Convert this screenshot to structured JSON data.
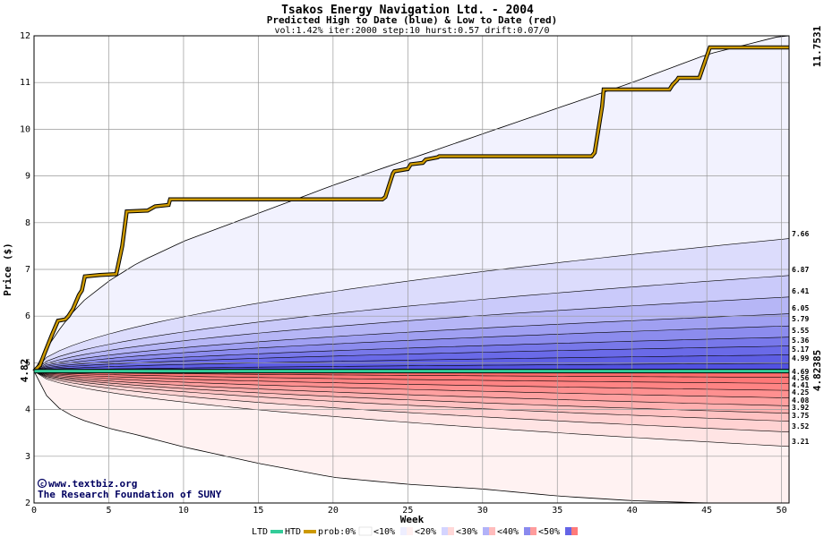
{
  "chart_data": {
    "type": "line",
    "title": "Tsakos Energy Navigation Ltd. - 2004",
    "subtitle": "Predicted High to Date (blue) &  Low to Date (red)",
    "params": "vol:1.42% iter:2000 step:10 hurst:0.57 drift:0.07/0",
    "xlabel": "Week",
    "ylabel": "Price ($)",
    "xlim": [
      0,
      50.5
    ],
    "ylim": [
      2,
      12
    ],
    "x_ticks": [
      0,
      5,
      10,
      15,
      20,
      25,
      30,
      35,
      40,
      45,
      50
    ],
    "y_ticks": [
      2,
      3,
      4,
      5,
      6,
      7,
      8,
      9,
      10,
      11,
      12
    ],
    "grid": true,
    "start_label": "4.82",
    "htd_end_label": "11.7531",
    "ltd_end_label": "4.82385",
    "band_end_values": [
      7.66,
      6.87,
      6.41,
      6.05,
      5.79,
      5.55,
      5.36,
      5.17,
      4.99,
      4.69,
      4.56,
      4.41,
      4.25,
      4.08,
      3.92,
      3.75,
      3.52,
      3.21
    ],
    "envelope": {
      "x": [
        0,
        1,
        2,
        3,
        5,
        7,
        10,
        15,
        20,
        25,
        30,
        35,
        40,
        45,
        50
      ],
      "upper": [
        4.82,
        5.4,
        5.85,
        6.25,
        6.75,
        7.15,
        7.6,
        8.2,
        8.8,
        9.35,
        9.9,
        10.45,
        11.0,
        11.6,
        12.0
      ],
      "lower": [
        4.82,
        4.2,
        3.95,
        3.8,
        3.6,
        3.45,
        3.2,
        2.85,
        2.55,
        2.4,
        2.3,
        2.15,
        2.05,
        2.0,
        2.0
      ]
    },
    "series": [
      {
        "name": "HTD",
        "color": "#cc9900",
        "x": [
          0,
          0.4,
          0.7,
          1.2,
          1.6,
          2.1,
          2.3,
          2.6,
          3.0,
          3.2,
          3.4,
          4.4,
          5.5,
          5.9,
          6.2,
          7.6,
          8.1,
          9.0,
          9.1,
          23.3,
          23.5,
          23.6,
          24.0,
          24.1,
          25.0,
          25.2,
          26.0,
          26.2,
          27.0,
          27.1,
          37.3,
          37.5,
          38.0,
          38.1,
          42.5,
          42.7,
          43.0,
          43.1,
          44.5,
          45.2,
          45.5,
          50.5
        ],
        "y": [
          4.82,
          4.95,
          5.2,
          5.6,
          5.9,
          5.93,
          6.0,
          6.15,
          6.45,
          6.55,
          6.85,
          6.88,
          6.9,
          7.5,
          8.24,
          8.26,
          8.35,
          8.38,
          8.5,
          8.5,
          8.55,
          8.65,
          9.05,
          9.1,
          9.15,
          9.25,
          9.28,
          9.35,
          9.4,
          9.42,
          9.42,
          9.5,
          10.5,
          10.85,
          10.85,
          10.95,
          11.05,
          11.1,
          11.1,
          11.75,
          11.75,
          11.75
        ]
      },
      {
        "name": "LTD",
        "color": "#33cc99",
        "x": [
          0,
          0.5,
          1,
          50.5
        ],
        "y": [
          4.82,
          4.823,
          4.824,
          4.824
        ]
      }
    ]
  },
  "legend": {
    "ltd": "LTD",
    "htd": "HTD",
    "prob0": "prob:0%",
    "p10": "<10%",
    "p20": "<20%",
    "p30": "<30%",
    "p40": "<40%",
    "p50": "<50%"
  },
  "colors": {
    "frame": "#000000",
    "grid": "#aaaaaa",
    "htd_line": "#cc9900",
    "ltd_line": "#33cc99",
    "htd_text": "#cc9900",
    "ltd_text": "#009966",
    "start_text": "#006600"
  },
  "credit": {
    "site": "www.textbiz.org",
    "org": "The Research Foundation of SUNY"
  }
}
